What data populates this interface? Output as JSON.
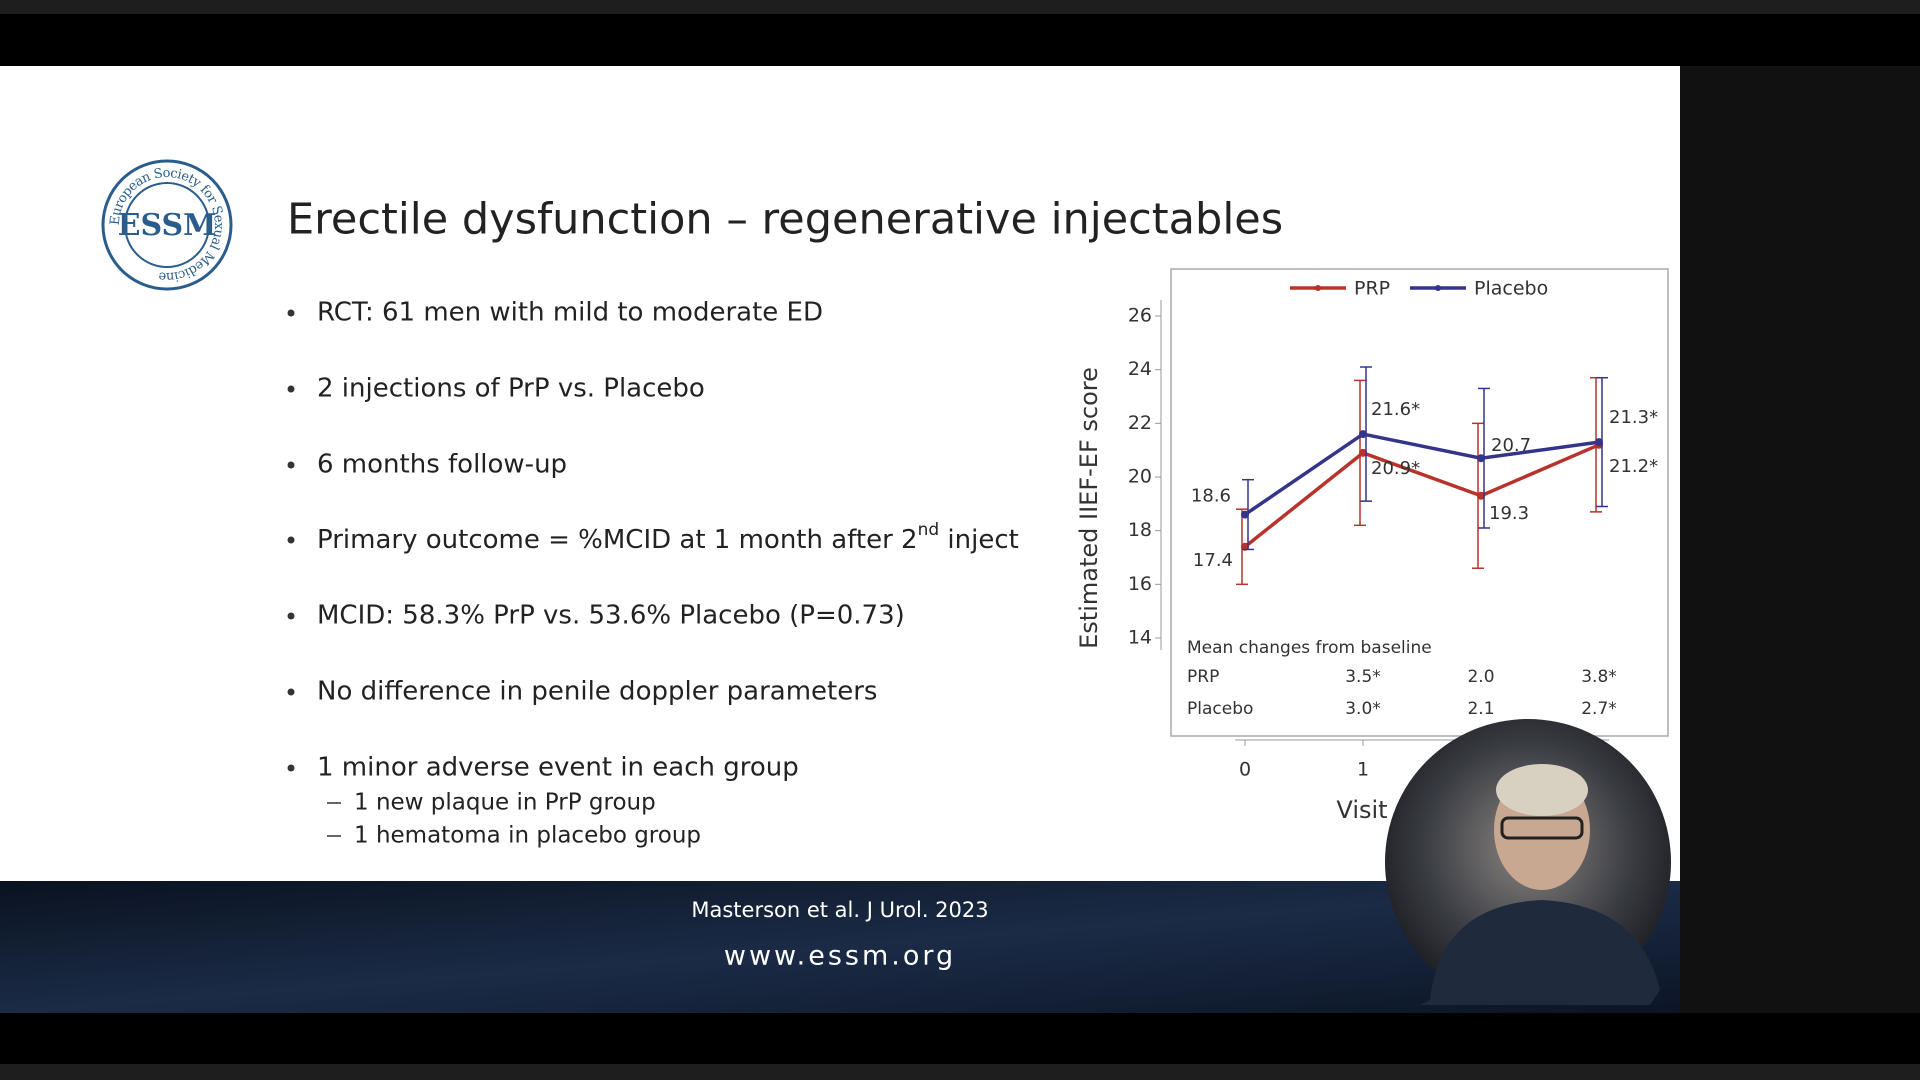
{
  "logo": {
    "mark": "ESSM",
    "ring": "European Society for Sexual Medicine"
  },
  "slide": {
    "title": "Erectile dysfunction – regenerative injectables",
    "bullets": [
      "RCT: 61 men with mild to moderate ED",
      "2 injections of PrP vs. Placebo",
      "6 months follow-up",
      {
        "text": "Primary outcome = %MCID at 1 month after 2",
        "sup": "nd",
        "after": " inject"
      },
      "MCID: 58.3% PrP vs. 53.6% Placebo (P=0.73)",
      "No difference in penile doppler parameters",
      "1 minor adverse event in each group"
    ],
    "sub_bullets": [
      "1 new plaque in PrP group",
      "1 hematoma in placebo group"
    ]
  },
  "footer": {
    "citation": "Masterson et al. J Urol. 2023",
    "url": "www.essm.org"
  },
  "chart_data": {
    "type": "line",
    "ylabel": "Estimated IIEF-EF score",
    "xlabel": "Visit",
    "categories": [
      "0",
      "1",
      null,
      null
    ],
    "series": [
      {
        "name": "PRP",
        "color": "#b8332c",
        "values": [
          17.4,
          20.9,
          19.3,
          21.2
        ],
        "value_labels": [
          "17.4",
          "20.9*",
          "19.3",
          "21.2*"
        ],
        "errors": [
          1.4,
          2.7,
          2.7,
          2.5
        ]
      },
      {
        "name": "Placebo",
        "color": "#34348a",
        "values": [
          18.6,
          21.6,
          20.7,
          21.3
        ],
        "value_labels": [
          "18.6",
          "21.6*",
          "20.7",
          "21.3*"
        ],
        "errors": [
          1.3,
          2.5,
          2.6,
          2.4
        ]
      }
    ],
    "ylim": [
      14,
      26
    ],
    "yticks": [
      14,
      16,
      18,
      20,
      22,
      24,
      26
    ],
    "table": {
      "title": "Mean changes from baseline",
      "rows": [
        {
          "name": "PRP",
          "values": [
            3.5,
            2.0,
            3.8
          ],
          "value_labels": [
            "3.5*",
            "2.0",
            "3.8*"
          ]
        },
        {
          "name": "Placebo",
          "values": [
            3.0,
            2.1,
            2.7
          ],
          "value_labels": [
            "3.0*",
            "2.1",
            "2.7*"
          ]
        }
      ]
    }
  }
}
